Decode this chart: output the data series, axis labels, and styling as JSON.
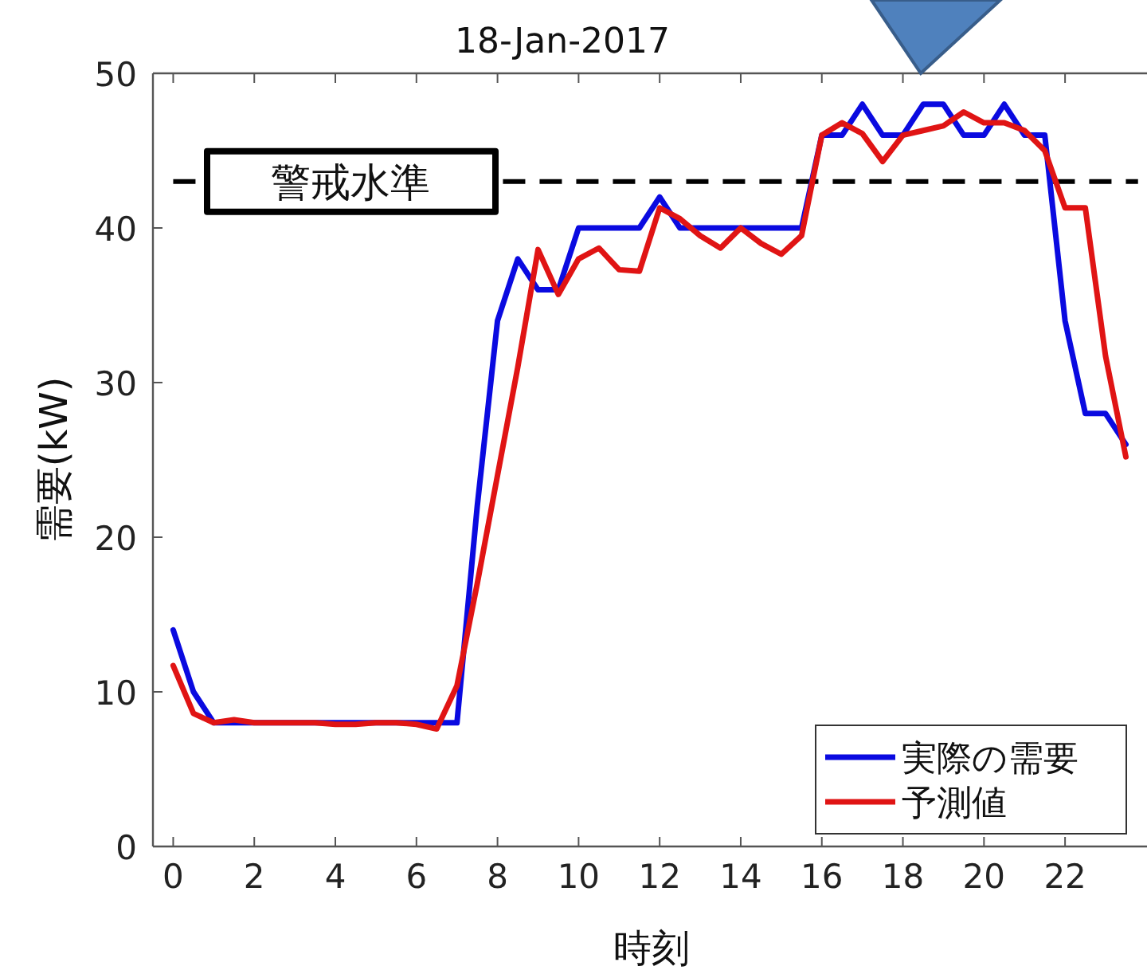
{
  "chart_data": {
    "type": "line",
    "title": "18-Jan-2017",
    "xlabel": "時刻",
    "ylabel": "需要(kW)",
    "xlim": [
      -0.5,
      24.1
    ],
    "ylim": [
      0,
      50
    ],
    "xticks": [
      0,
      2,
      4,
      6,
      8,
      10,
      12,
      14,
      16,
      18,
      20,
      22
    ],
    "yticks": [
      0,
      10,
      20,
      30,
      40,
      50
    ],
    "grid": false,
    "legend": "bottom right",
    "line_style": "solid",
    "marker": "none",
    "ref_lines": [
      {
        "axis": "y",
        "value": 43,
        "label": "警戒水準",
        "color": "#000000",
        "line_style": "dashed"
      }
    ],
    "series": [
      {
        "name": "実際の需要",
        "color": "#0a0ae0",
        "x": [
          0,
          0.5,
          1,
          1.5,
          2,
          2.5,
          3,
          3.5,
          4,
          4.5,
          5,
          5.5,
          6,
          6.5,
          7,
          7.5,
          8,
          8.5,
          9,
          9.5,
          10,
          10.5,
          11,
          11.5,
          12,
          12.5,
          13,
          13.5,
          14,
          14.5,
          15,
          15.5,
          16,
          16.5,
          17,
          17.5,
          18,
          18.5,
          19,
          19.5,
          20,
          20.5,
          21,
          21.5,
          22,
          22.5,
          23,
          23.5
        ],
        "values": [
          14,
          10,
          8,
          8,
          8,
          8,
          8,
          8,
          8,
          8,
          8,
          8,
          8,
          8,
          8,
          22,
          34,
          38,
          36,
          36,
          40,
          40,
          40,
          40,
          42,
          40,
          40,
          40,
          40,
          40,
          40,
          40,
          46,
          46,
          48,
          46,
          46,
          48,
          48,
          46,
          46,
          48,
          46,
          46,
          34,
          28,
          28,
          26
        ]
      },
      {
        "name": "予測値",
        "color": "#e01414",
        "x": [
          0,
          0.5,
          1,
          1.5,
          2,
          2.5,
          3,
          3.5,
          4,
          4.5,
          5,
          5.5,
          6,
          6.5,
          7,
          7.5,
          8,
          8.5,
          9,
          9.5,
          10,
          10.5,
          11,
          11.5,
          12,
          12.5,
          13,
          13.5,
          14,
          14.5,
          15,
          15.5,
          16,
          16.5,
          17,
          17.5,
          18,
          18.5,
          19,
          19.5,
          20,
          20.5,
          21,
          21.5,
          22,
          22.5,
          23,
          23.5
        ],
        "values": [
          11.7,
          8.6,
          8,
          8.2,
          8,
          8,
          8,
          8,
          7.9,
          7.9,
          8,
          8,
          7.9,
          7.6,
          10.4,
          17,
          24,
          31,
          38.6,
          35.7,
          38,
          38.7,
          37.3,
          37.2,
          41.3,
          40.6,
          39.5,
          38.7,
          40,
          39,
          38.3,
          39.5,
          46,
          46.8,
          46.1,
          44.3,
          46,
          46.3,
          46.6,
          47.5,
          46.8,
          46.8,
          46.3,
          45,
          41.3,
          41.3,
          31.7,
          25.2
        ]
      }
    ]
  }
}
